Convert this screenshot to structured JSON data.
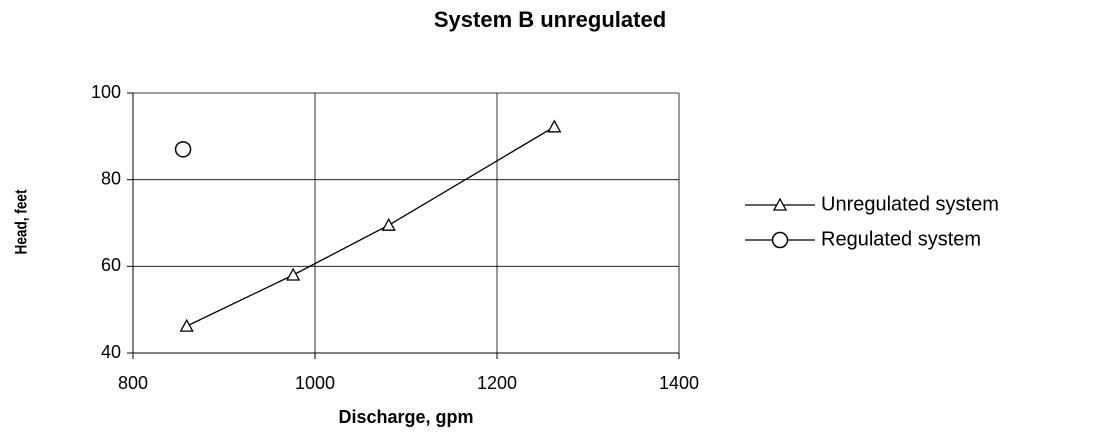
{
  "chart_data": {
    "type": "line",
    "title": "System B unregulated",
    "xlabel": "Discharge, gpm",
    "ylabel": "Head, feet",
    "series": [
      {
        "name": "Unregulated system",
        "color": "#000000",
        "marker": "triangle",
        "line": true,
        "x": [
          859,
          976,
          1081,
          1263
        ],
        "values": [
          46.2,
          58,
          69.5,
          92.2
        ]
      },
      {
        "name": "Regulated system",
        "color": "#000000",
        "marker": "circle",
        "line": false,
        "x": [
          855
        ],
        "values": [
          87
        ]
      }
    ],
    "xlim": [
      800,
      1400
    ],
    "xticks": [
      800,
      1000,
      1200,
      1400
    ],
    "ylim": [
      40,
      100
    ],
    "yticks": [
      40,
      60,
      80,
      100
    ],
    "grid": true,
    "legend": "right"
  }
}
